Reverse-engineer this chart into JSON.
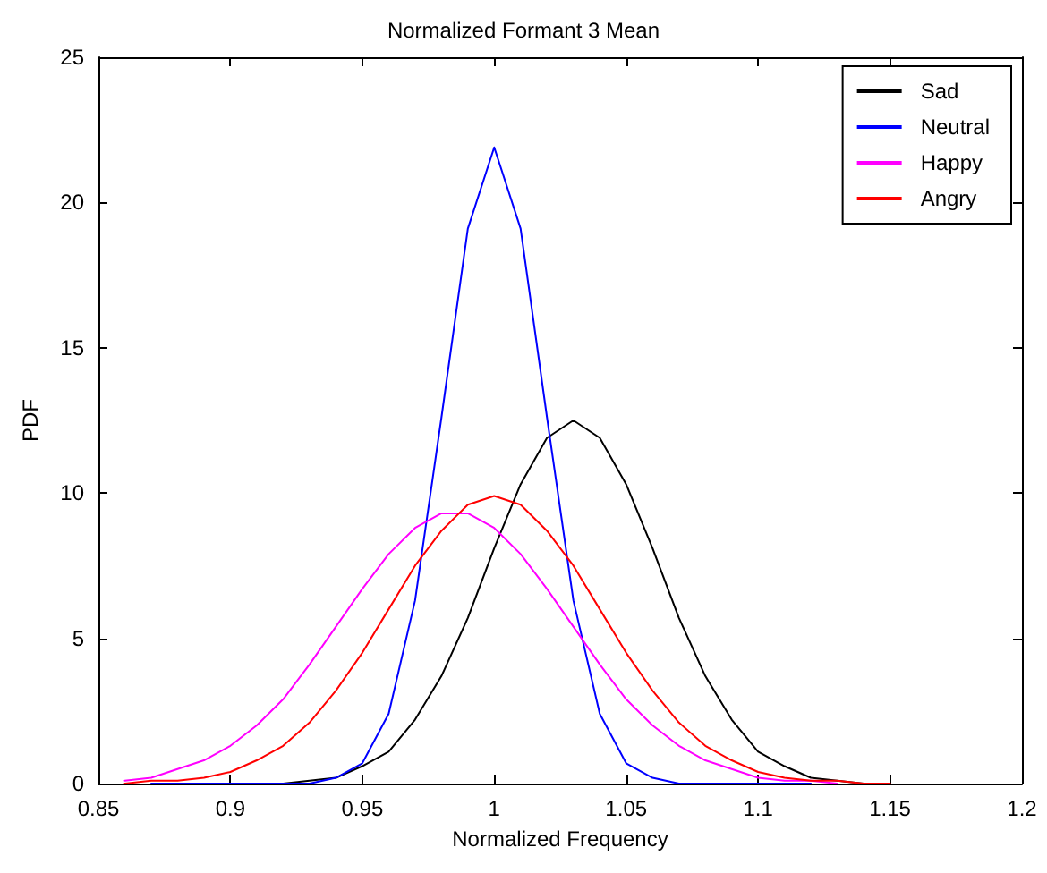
{
  "chart_data": {
    "type": "line",
    "title": "Normalized Formant 3 Mean",
    "xlabel": "Normalized Frequency",
    "ylabel": "PDF",
    "xlim": [
      0.85,
      1.2
    ],
    "xticks": [
      0.85,
      0.9,
      0.95,
      1,
      1.05,
      1.1,
      1.15,
      1.2
    ],
    "ylim": [
      0,
      25
    ],
    "yticks": [
      0,
      5,
      10,
      15,
      20,
      25
    ],
    "grid": false,
    "legend": "top right",
    "marker": "none",
    "line_style": "solid",
    "series": [
      {
        "name": "Sad",
        "color": "#000000",
        "x": [
          0.91,
          0.92,
          0.93,
          0.94,
          0.95,
          0.96,
          0.97,
          0.98,
          0.99,
          1.0,
          1.01,
          1.02,
          1.03,
          1.04,
          1.05,
          1.06,
          1.07,
          1.08,
          1.09,
          1.1,
          1.11,
          1.12,
          1.13,
          1.14
        ],
        "values": [
          0.0,
          0.0,
          0.1,
          0.2,
          0.6,
          1.1,
          2.2,
          3.7,
          5.7,
          8.1,
          10.3,
          11.9,
          12.5,
          11.9,
          10.3,
          8.1,
          5.7,
          3.7,
          2.2,
          1.1,
          0.6,
          0.2,
          0.1,
          0.0
        ]
      },
      {
        "name": "Neutral",
        "color": "#0000ff",
        "x": [
          0.87,
          0.9,
          0.93,
          0.94,
          0.95,
          0.96,
          0.97,
          0.98,
          0.99,
          1.0,
          1.01,
          1.02,
          1.03,
          1.04,
          1.05,
          1.06,
          1.07,
          1.1,
          1.12
        ],
        "values": [
          0.0,
          0.0,
          0.0,
          0.2,
          0.7,
          2.4,
          6.3,
          12.6,
          19.1,
          21.9,
          19.1,
          12.6,
          6.3,
          2.4,
          0.7,
          0.2,
          0.0,
          0.0,
          0.0
        ]
      },
      {
        "name": "Happy",
        "color": "#ff00ff",
        "x": [
          0.86,
          0.87,
          0.88,
          0.89,
          0.9,
          0.91,
          0.92,
          0.93,
          0.94,
          0.95,
          0.96,
          0.97,
          0.98,
          0.99,
          1.0,
          1.01,
          1.02,
          1.03,
          1.04,
          1.05,
          1.06,
          1.07,
          1.08,
          1.09,
          1.1,
          1.11,
          1.12,
          1.13
        ],
        "values": [
          0.1,
          0.2,
          0.5,
          0.8,
          1.3,
          2.0,
          2.9,
          4.1,
          5.4,
          6.7,
          7.9,
          8.8,
          9.3,
          9.3,
          8.8,
          7.9,
          6.7,
          5.4,
          4.1,
          2.9,
          2.0,
          1.3,
          0.8,
          0.5,
          0.2,
          0.1,
          0.1,
          0.0
        ]
      },
      {
        "name": "Angry",
        "color": "#ff0000",
        "x": [
          0.86,
          0.87,
          0.88,
          0.89,
          0.9,
          0.91,
          0.92,
          0.93,
          0.94,
          0.95,
          0.96,
          0.97,
          0.98,
          0.99,
          1.0,
          1.01,
          1.02,
          1.03,
          1.04,
          1.05,
          1.06,
          1.07,
          1.08,
          1.09,
          1.1,
          1.11,
          1.12,
          1.13,
          1.14,
          1.15
        ],
        "values": [
          0.0,
          0.1,
          0.1,
          0.2,
          0.4,
          0.8,
          1.3,
          2.1,
          3.2,
          4.5,
          6.0,
          7.5,
          8.7,
          9.6,
          9.9,
          9.6,
          8.7,
          7.5,
          6.0,
          4.5,
          3.2,
          2.1,
          1.3,
          0.8,
          0.4,
          0.2,
          0.1,
          0.1,
          0.0,
          0.0
        ]
      }
    ]
  }
}
